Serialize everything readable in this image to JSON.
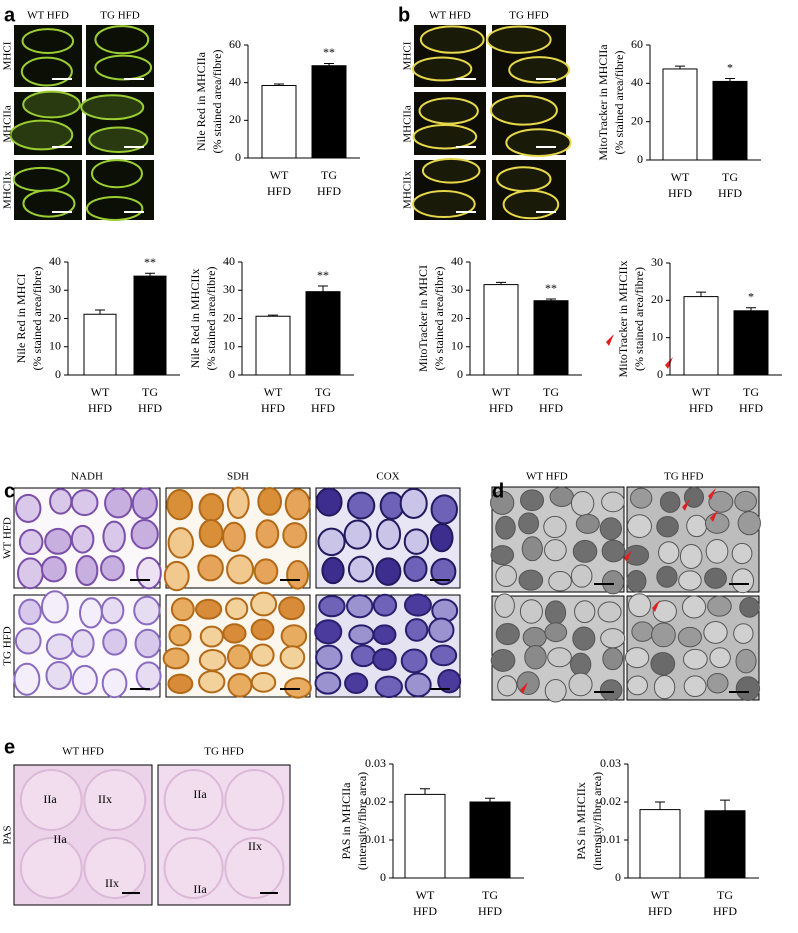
{
  "chart_data": [
    {
      "type": "bar",
      "ylabel": [
        "Nile Red in MHCIIa",
        "(% stained area/fibre)"
      ],
      "categories": [
        [
          "WT",
          "HFD"
        ],
        [
          "TG",
          "HFD"
        ]
      ],
      "values": [
        38.5,
        49
      ],
      "errors": [
        0.8,
        1.2
      ],
      "colors": [
        "#ffffff",
        "#000000"
      ],
      "ylim": [
        0,
        60
      ],
      "yticks": [
        0,
        20,
        40,
        60
      ],
      "annotation": "**"
    },
    {
      "type": "bar",
      "ylabel": [
        "Nile Red in MHCI",
        "(% stained area/fibre)"
      ],
      "categories": [
        [
          "WT",
          "HFD"
        ],
        [
          "TG",
          "HFD"
        ]
      ],
      "values": [
        21.5,
        35
      ],
      "errors": [
        1.5,
        1
      ],
      "colors": [
        "#ffffff",
        "#000000"
      ],
      "ylim": [
        0,
        40
      ],
      "yticks": [
        0,
        10,
        20,
        30,
        40
      ],
      "annotation": "**"
    },
    {
      "type": "bar",
      "ylabel": [
        "Nile Red in MHCIIx",
        "(% stained area/fibre)"
      ],
      "categories": [
        [
          "WT",
          "HFD"
        ],
        [
          "TG",
          "HFD"
        ]
      ],
      "values": [
        20.8,
        29.5
      ],
      "errors": [
        0.4,
        2
      ],
      "colors": [
        "#ffffff",
        "#000000"
      ],
      "ylim": [
        0,
        40
      ],
      "yticks": [
        0,
        10,
        20,
        30,
        40
      ],
      "annotation": "**"
    },
    {
      "type": "bar",
      "ylabel": [
        "MitoTracker in MHCIIa",
        "(% stained area/fibre)"
      ],
      "categories": [
        [
          "WT",
          "HFD"
        ],
        [
          "TG",
          "HFD"
        ]
      ],
      "values": [
        47.5,
        41
      ],
      "errors": [
        1.5,
        1.5
      ],
      "colors": [
        "#ffffff",
        "#000000"
      ],
      "ylim": [
        0,
        60
      ],
      "yticks": [
        0,
        20,
        40,
        60
      ],
      "annotation": "*"
    },
    {
      "type": "bar",
      "ylabel": [
        "MitoTracker in MHCI",
        "(% stained area/fibre)"
      ],
      "categories": [
        [
          "WT",
          "HFD"
        ],
        [
          "TG",
          "HFD"
        ]
      ],
      "values": [
        32,
        26.3
      ],
      "errors": [
        0.8,
        0.6
      ],
      "colors": [
        "#ffffff",
        "#000000"
      ],
      "ylim": [
        0,
        40
      ],
      "yticks": [
        0,
        10,
        20,
        30,
        40
      ],
      "annotation": "**"
    },
    {
      "type": "bar",
      "ylabel": [
        "MitoTracker in MHCIIx",
        "(% stained area/fibre)"
      ],
      "categories": [
        [
          "WT",
          "HFD"
        ],
        [
          "TG",
          "HFD"
        ]
      ],
      "values": [
        21,
        17.2
      ],
      "errors": [
        1.2,
        0.8
      ],
      "colors": [
        "#ffffff",
        "#000000"
      ],
      "ylim": [
        0,
        30
      ],
      "yticks": [
        0,
        10,
        20,
        30
      ],
      "annotation": "*"
    },
    {
      "type": "bar",
      "ylabel": [
        "PAS in MHCIIa",
        "(intensity/fibre area)"
      ],
      "categories": [
        [
          "WT",
          "HFD"
        ],
        [
          "TG",
          "HFD"
        ]
      ],
      "values": [
        0.022,
        0.02
      ],
      "errors": [
        0.0015,
        0.001
      ],
      "colors": [
        "#ffffff",
        "#000000"
      ],
      "ylim": [
        0,
        0.03
      ],
      "yticks": [
        0,
        0.01,
        0.02,
        0.03
      ]
    },
    {
      "type": "bar",
      "ylabel": [
        "PAS in MHCIIx",
        "(intensity/fibre area)"
      ],
      "categories": [
        [
          "WT",
          "HFD"
        ],
        [
          "TG",
          "HFD"
        ]
      ],
      "values": [
        0.018,
        0.0177
      ],
      "errors": [
        0.002,
        0.0028
      ],
      "colors": [
        "#ffffff",
        "#000000"
      ],
      "ylim": [
        0,
        0.03
      ],
      "yticks": [
        0,
        0.01,
        0.02,
        0.03
      ]
    }
  ],
  "panels": {
    "a": {
      "letter": "a",
      "columns": [
        "WT HFD",
        "TG HFD"
      ],
      "rows": [
        "MHCI",
        "MHCIIa",
        "MHCIIx"
      ]
    },
    "b": {
      "letter": "b",
      "columns": [
        "WT HFD",
        "TG HFD"
      ],
      "rows": [
        "MHCI",
        "MHCIIa",
        "MHCIIx"
      ]
    },
    "c": {
      "letter": "c",
      "columns": [
        "NADH",
        "SDH",
        "COX"
      ],
      "rows": [
        "WT HFD",
        "TG HFD"
      ]
    },
    "d": {
      "letter": "d",
      "columns": [
        "WT HFD",
        "TG HFD"
      ]
    },
    "e": {
      "letter": "e",
      "columns": [
        "WT HFD",
        "TG HFD"
      ],
      "rows": [
        "PAS"
      ],
      "fibre_labels": [
        "IIa",
        "IIx",
        "IIa",
        "IIx",
        "IIa",
        "IIx",
        "IIa"
      ]
    }
  }
}
